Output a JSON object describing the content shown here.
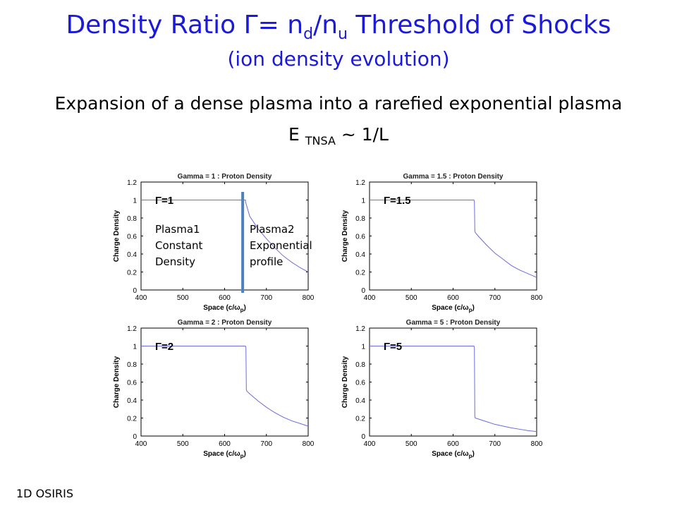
{
  "slide": {
    "title_main": "Density Ratio Γ= n",
    "title_sub_d": "d",
    "title_slash": "/n",
    "title_sub_u": "u",
    "title_end": " Threshold of Shocks",
    "subtitle": "(ion density evolution)",
    "heading": "Expansion of a dense plasma into a rarefied exponential plasma",
    "formula_e": "E ",
    "formula_sub": "TNSA",
    "formula_rest": " ~ 1/L",
    "footer": "1D OSIRIS"
  },
  "annotations": {
    "plasma1": [
      "Plasma1",
      "Constant",
      "Density"
    ],
    "plasma2": [
      "Plasma2",
      "Exponential",
      "profile"
    ],
    "marker_color": "#4f81bd"
  },
  "chart_data": [
    {
      "type": "line",
      "title": "Gamma = 1 : Proton Density",
      "xlabel": "Space (c/ω",
      "xlabel_sub": "p",
      "xlabel_end": ")",
      "ylabel": "Charge Density",
      "gamma_label": "Γ=1",
      "xlim": [
        400,
        800
      ],
      "ylim": [
        0,
        1.2
      ],
      "xticks": [
        400,
        500,
        600,
        700,
        800
      ],
      "yticks": [
        0,
        0.2,
        0.4,
        0.6,
        0.8,
        1,
        1.2
      ],
      "series": [
        {
          "x": [
            400,
            650,
            650,
            660,
            680,
            700,
            720,
            740,
            760,
            780,
            800
          ],
          "y": [
            1,
            1,
            0.98,
            0.82,
            0.68,
            0.57,
            0.47,
            0.38,
            0.31,
            0.25,
            0.2
          ]
        }
      ],
      "color": "#6b6bdc"
    },
    {
      "type": "line",
      "title": "Gamma = 1.5 : Proton Density",
      "xlabel": "Space (c/ω",
      "xlabel_sub": "p",
      "xlabel_end": ")",
      "ylabel": "Charge Density",
      "gamma_label": "Γ=1.5",
      "xlim": [
        400,
        800
      ],
      "ylim": [
        0,
        1.2
      ],
      "xticks": [
        400,
        500,
        600,
        700,
        800
      ],
      "yticks": [
        0,
        0.2,
        0.4,
        0.6,
        0.8,
        1,
        1.2
      ],
      "series": [
        {
          "x": [
            400,
            650,
            651,
            652,
            653,
            660,
            680,
            700,
            720,
            740,
            760,
            780,
            800
          ],
          "y": [
            1,
            1,
            0.98,
            0.66,
            0.64,
            0.6,
            0.5,
            0.41,
            0.34,
            0.27,
            0.22,
            0.18,
            0.14
          ]
        }
      ],
      "color": "#6b6bdc"
    },
    {
      "type": "line",
      "title": "Gamma = 2 : Proton Density",
      "xlabel": "Space (c/ω",
      "xlabel_sub": "p",
      "xlabel_end": ")",
      "ylabel": "Charge Density",
      "gamma_label": "Γ=2",
      "xlim": [
        400,
        800
      ],
      "ylim": [
        0,
        1.2
      ],
      "xticks": [
        400,
        500,
        600,
        700,
        800
      ],
      "yticks": [
        0,
        0.2,
        0.4,
        0.6,
        0.8,
        1,
        1.2
      ],
      "series": [
        {
          "x": [
            400,
            650,
            651,
            652,
            653,
            660,
            680,
            700,
            720,
            740,
            760,
            780,
            800
          ],
          "y": [
            1,
            1,
            0.98,
            0.52,
            0.5,
            0.47,
            0.39,
            0.32,
            0.26,
            0.21,
            0.17,
            0.14,
            0.11
          ]
        }
      ],
      "color": "#6b6bdc"
    },
    {
      "type": "line",
      "title": "Gamma = 5 : Proton Density",
      "xlabel": "Space (c/ω",
      "xlabel_sub": "p",
      "xlabel_end": ")",
      "ylabel": "Charge Density",
      "gamma_label": "Γ=5",
      "xlim": [
        400,
        800
      ],
      "ylim": [
        0,
        1.2
      ],
      "xticks": [
        400,
        500,
        600,
        700,
        800
      ],
      "yticks": [
        0,
        0.2,
        0.4,
        0.6,
        0.8,
        1,
        1.2
      ],
      "series": [
        {
          "x": [
            400,
            650,
            651,
            652,
            653,
            660,
            680,
            700,
            720,
            740,
            760,
            780,
            800
          ],
          "y": [
            1,
            1,
            0.98,
            0.22,
            0.2,
            0.19,
            0.16,
            0.13,
            0.11,
            0.09,
            0.075,
            0.06,
            0.05
          ]
        }
      ],
      "color": "#6b6bdc"
    }
  ]
}
